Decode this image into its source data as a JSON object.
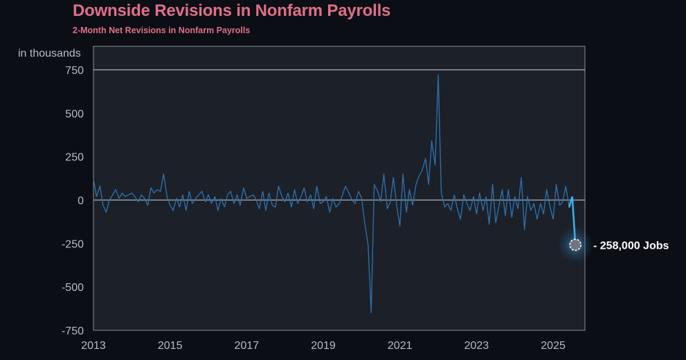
{
  "chart_data": {
    "type": "line",
    "title": "Downside Revisions in Nonfarm Payrolls",
    "subtitle": "2-Month Net Revisions in Nonfarm Payrolls",
    "ylabel": "in thousands",
    "xlabel": "",
    "ylim": [
      -750,
      750
    ],
    "xlim": [
      2013,
      2025.83
    ],
    "y_ticks": [
      {
        "value": 750,
        "label": "750"
      },
      {
        "value": 500,
        "label": "500"
      },
      {
        "value": 250,
        "label": "250"
      },
      {
        "value": 0,
        "label": "0"
      },
      {
        "value": -250,
        "label": "-250"
      },
      {
        "value": -500,
        "label": "-500"
      },
      {
        "value": -750,
        "label": "-750"
      }
    ],
    "x_ticks": [
      {
        "value": 2013,
        "label": "2013"
      },
      {
        "value": 2015,
        "label": "2015"
      },
      {
        "value": 2017,
        "label": "2017"
      },
      {
        "value": 2019,
        "label": "2019"
      },
      {
        "value": 2021,
        "label": "2021"
      },
      {
        "value": 2023,
        "label": "2023"
      },
      {
        "value": 2025,
        "label": "2025"
      }
    ],
    "grid": false,
    "reference_lines": [
      0,
      750
    ],
    "line_color": "#2f6ea8",
    "highlight_color": "#3fb4f2",
    "background": "#1b2029",
    "series": [
      {
        "x": [
          2013.0,
          2013.08,
          2013.17,
          2013.25,
          2013.33,
          2013.42,
          2013.5,
          2013.58,
          2013.67,
          2013.75,
          2013.83,
          2013.92,
          2014.0,
          2014.08,
          2014.17,
          2014.25,
          2014.33,
          2014.42,
          2014.5,
          2014.58,
          2014.67,
          2014.75,
          2014.83,
          2014.92,
          2015.0,
          2015.08,
          2015.17,
          2015.25,
          2015.33,
          2015.42,
          2015.5,
          2015.58,
          2015.67,
          2015.75,
          2015.83,
          2015.92,
          2016.0,
          2016.08,
          2016.17,
          2016.25,
          2016.33,
          2016.42,
          2016.5,
          2016.58,
          2016.67,
          2016.75,
          2016.83,
          2016.92,
          2017.0,
          2017.08,
          2017.17,
          2017.25,
          2017.33,
          2017.42,
          2017.5,
          2017.58,
          2017.67,
          2017.75,
          2017.83,
          2017.92,
          2018.0,
          2018.08,
          2018.17,
          2018.25,
          2018.33,
          2018.42,
          2018.5,
          2018.58,
          2018.67,
          2018.75,
          2018.83,
          2018.92,
          2019.0,
          2019.08,
          2019.17,
          2019.25,
          2019.33,
          2019.42,
          2019.5,
          2019.58,
          2019.67,
          2019.75,
          2019.83,
          2019.92,
          2020.0,
          2020.08,
          2020.17,
          2020.25,
          2020.33,
          2020.42,
          2020.5,
          2020.58,
          2020.67,
          2020.75,
          2020.83,
          2020.92,
          2021.0,
          2021.08,
          2021.17,
          2021.25,
          2021.33,
          2021.42,
          2021.5,
          2021.58,
          2021.67,
          2021.75,
          2021.83,
          2021.92,
          2022.0,
          2022.08,
          2022.17,
          2022.25,
          2022.33,
          2022.42,
          2022.5,
          2022.58,
          2022.67,
          2022.75,
          2022.83,
          2022.92,
          2023.0,
          2023.08,
          2023.17,
          2023.25,
          2023.33,
          2023.42,
          2023.5,
          2023.58,
          2023.67,
          2023.75,
          2023.83,
          2023.92,
          2024.0,
          2024.08,
          2024.17,
          2024.25,
          2024.33,
          2024.42,
          2024.5,
          2024.58,
          2024.67,
          2024.75,
          2024.83,
          2024.92,
          2025.0,
          2025.08,
          2025.17,
          2025.25,
          2025.33,
          2025.42
        ],
        "values": [
          120,
          20,
          80,
          -30,
          -70,
          0,
          30,
          60,
          10,
          40,
          20,
          30,
          40,
          20,
          -10,
          30,
          10,
          -30,
          70,
          40,
          60,
          50,
          150,
          20,
          -30,
          -60,
          10,
          -40,
          30,
          -60,
          50,
          -20,
          10,
          30,
          50,
          -10,
          30,
          -20,
          20,
          -60,
          10,
          -40,
          30,
          50,
          -20,
          30,
          -30,
          70,
          10,
          20,
          30,
          0,
          -50,
          50,
          -60,
          40,
          -30,
          -40,
          80,
          20,
          -10,
          40,
          -40,
          60,
          -20,
          20,
          70,
          -10,
          30,
          -50,
          80,
          -20,
          -10,
          20,
          -70,
          10,
          -40,
          -20,
          30,
          80,
          40,
          0,
          -20,
          50,
          10,
          -130,
          -260,
          -650,
          90,
          50,
          -10,
          150,
          -50,
          -10,
          130,
          -40,
          -150,
          150,
          -70,
          60,
          -30,
          90,
          140,
          170,
          240,
          90,
          340,
          200,
          720,
          40,
          -40,
          -20,
          -60,
          30,
          -50,
          -110,
          30,
          -20,
          -60,
          20,
          -80,
          40,
          -60,
          20,
          -140,
          90,
          -130,
          -40,
          60,
          -90,
          60,
          -100,
          20,
          -50,
          130,
          -170,
          20,
          -60,
          -20,
          -110,
          -20,
          -80,
          60,
          -40,
          -110,
          90,
          -30,
          -10,
          80,
          -40
        ],
        "highlight": {
          "x": [
            2025.42,
            2025.5,
            2025.58
          ],
          "values": [
            -40,
            20,
            -258
          ]
        }
      }
    ],
    "annotation": {
      "x": 2025.58,
      "value": -258,
      "label": "- 258,000 Jobs"
    }
  }
}
